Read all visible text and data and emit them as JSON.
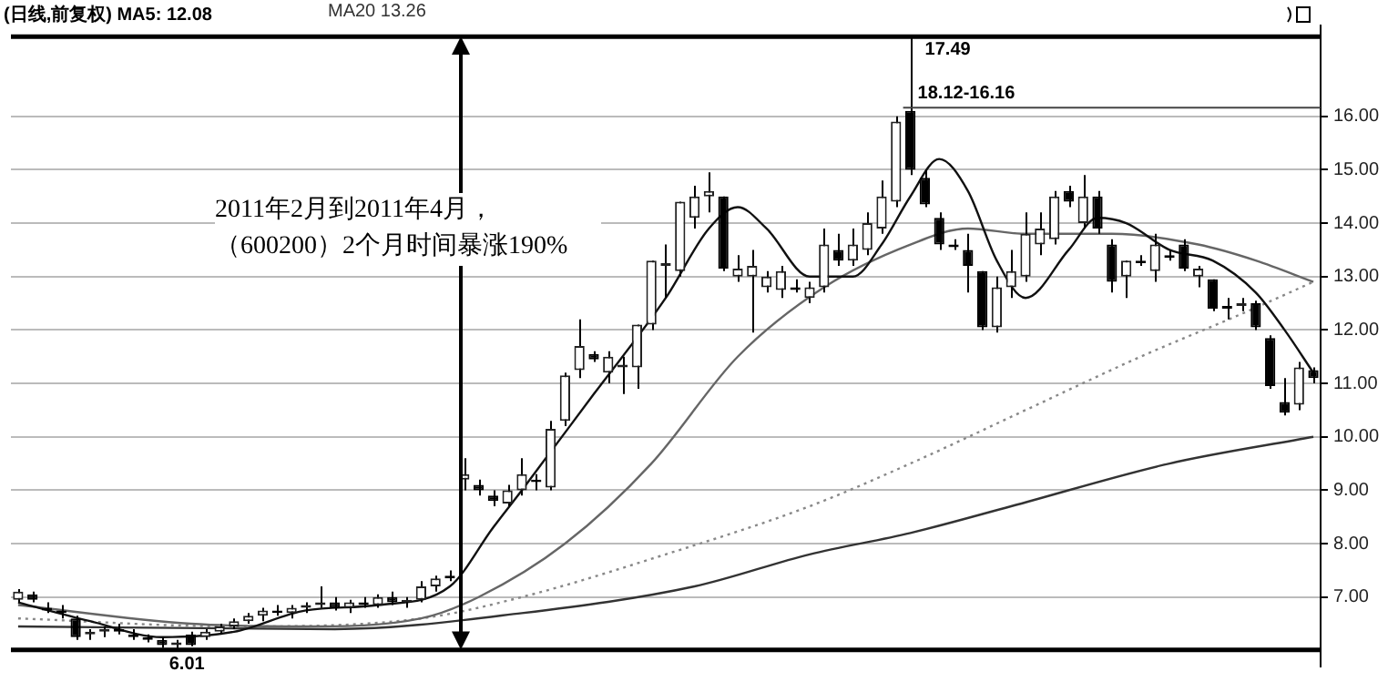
{
  "chart_data": {
    "type": "candlestick",
    "title": "(日线,前复权) MA5: 12.08",
    "subtitle": "MA20 13.26",
    "categories": [
      null,
      null,
      null,
      null,
      null,
      null,
      null,
      null,
      null,
      null,
      null,
      null,
      null,
      null,
      null,
      null,
      null,
      null,
      null,
      null,
      null,
      null,
      null,
      null,
      null,
      null,
      null,
      null,
      null,
      null,
      null,
      null,
      null,
      null,
      null,
      null,
      null,
      null,
      null,
      null,
      null,
      null,
      null,
      null,
      null,
      null,
      null,
      null,
      null,
      null,
      null,
      null,
      null,
      null,
      null,
      null,
      null,
      null,
      null,
      null,
      null,
      null,
      null,
      null,
      null,
      null,
      null,
      null,
      null,
      null,
      null,
      null,
      null,
      null,
      null,
      null,
      null,
      null,
      null,
      null,
      null,
      null,
      null,
      null,
      null,
      null,
      null,
      null,
      null,
      null,
      null
    ],
    "ohlc": [
      [
        6.95,
        7.15,
        6.9,
        7.1
      ],
      [
        7.05,
        7.1,
        6.9,
        6.95
      ],
      [
        6.8,
        6.9,
        6.7,
        6.75
      ],
      [
        6.75,
        6.85,
        6.6,
        6.7
      ],
      [
        6.6,
        6.65,
        6.2,
        6.25
      ],
      [
        6.3,
        6.4,
        6.2,
        6.35
      ],
      [
        6.35,
        6.45,
        6.25,
        6.4
      ],
      [
        6.4,
        6.5,
        6.3,
        6.35
      ],
      [
        6.3,
        6.4,
        6.2,
        6.25
      ],
      [
        6.25,
        6.3,
        6.15,
        6.2
      ],
      [
        6.2,
        6.25,
        6.05,
        6.1
      ],
      [
        6.1,
        6.2,
        6.01,
        6.15
      ],
      [
        6.3,
        6.35,
        6.08,
        6.1
      ],
      [
        6.25,
        6.4,
        6.2,
        6.35
      ],
      [
        6.35,
        6.5,
        6.3,
        6.45
      ],
      [
        6.45,
        6.6,
        6.4,
        6.55
      ],
      [
        6.55,
        6.7,
        6.5,
        6.65
      ],
      [
        6.65,
        6.8,
        6.55,
        6.75
      ],
      [
        6.75,
        6.85,
        6.65,
        6.7
      ],
      [
        6.7,
        6.85,
        6.6,
        6.8
      ],
      [
        6.8,
        6.9,
        6.7,
        6.85
      ],
      [
        6.85,
        7.2,
        6.8,
        6.9
      ],
      [
        6.9,
        7.0,
        6.75,
        6.8
      ],
      [
        6.8,
        6.95,
        6.7,
        6.9
      ],
      [
        6.9,
        7.0,
        6.8,
        6.85
      ],
      [
        6.85,
        7.05,
        6.8,
        7.0
      ],
      [
        7.0,
        7.1,
        6.85,
        6.9
      ],
      [
        6.9,
        7.0,
        6.8,
        6.95
      ],
      [
        6.95,
        7.3,
        6.9,
        7.2
      ],
      [
        7.2,
        7.4,
        7.1,
        7.35
      ],
      [
        7.4,
        7.5,
        7.3,
        7.35
      ],
      [
        9.2,
        9.6,
        9.0,
        9.3
      ],
      [
        9.1,
        9.2,
        8.9,
        9.0
      ],
      [
        8.9,
        9.0,
        8.7,
        8.8
      ],
      [
        8.75,
        9.1,
        8.7,
        9.0
      ],
      [
        9.0,
        9.6,
        8.9,
        9.3
      ],
      [
        9.2,
        9.3,
        9.0,
        9.15
      ],
      [
        9.05,
        10.3,
        9.0,
        10.15
      ],
      [
        10.3,
        11.2,
        10.2,
        11.15
      ],
      [
        11.25,
        12.2,
        11.1,
        11.7
      ],
      [
        11.55,
        11.6,
        11.4,
        11.45
      ],
      [
        11.2,
        11.6,
        11.0,
        11.5
      ],
      [
        11.3,
        11.5,
        10.8,
        11.35
      ],
      [
        11.3,
        12.1,
        10.9,
        12.1
      ],
      [
        12.1,
        13.3,
        12.0,
        13.3
      ],
      [
        13.2,
        13.6,
        12.6,
        13.25
      ],
      [
        13.1,
        14.4,
        13.0,
        14.4
      ],
      [
        14.1,
        14.7,
        13.9,
        14.5
      ],
      [
        14.5,
        14.95,
        14.2,
        14.6
      ],
      [
        14.5,
        14.5,
        13.1,
        13.15
      ],
      [
        13.0,
        13.4,
        12.9,
        13.15
      ],
      [
        13.0,
        13.5,
        11.95,
        13.2
      ],
      [
        12.8,
        13.1,
        12.7,
        13.0
      ],
      [
        12.75,
        13.2,
        12.6,
        13.1
      ],
      [
        12.8,
        12.95,
        12.7,
        12.75
      ],
      [
        12.6,
        12.9,
        12.5,
        12.8
      ],
      [
        12.8,
        13.9,
        12.7,
        13.6
      ],
      [
        13.5,
        13.8,
        13.2,
        13.3
      ],
      [
        13.3,
        13.9,
        13.2,
        13.6
      ],
      [
        13.5,
        14.2,
        13.4,
        14.0
      ],
      [
        13.9,
        14.8,
        13.8,
        14.5
      ],
      [
        14.4,
        16.0,
        14.3,
        15.9
      ],
      [
        16.1,
        17.49,
        14.9,
        15.0
      ],
      [
        14.85,
        15.0,
        14.3,
        14.35
      ],
      [
        14.1,
        14.2,
        13.5,
        13.6
      ],
      [
        13.6,
        13.7,
        13.5,
        13.55
      ],
      [
        13.5,
        13.8,
        12.7,
        13.2
      ],
      [
        13.1,
        13.1,
        12.0,
        12.05
      ],
      [
        12.05,
        13.0,
        11.95,
        12.8
      ],
      [
        12.8,
        13.5,
        12.6,
        13.1
      ],
      [
        13.0,
        14.2,
        12.9,
        13.8
      ],
      [
        13.6,
        14.2,
        13.4,
        13.9
      ],
      [
        13.7,
        14.6,
        13.6,
        14.5
      ],
      [
        14.6,
        14.7,
        14.3,
        14.4
      ],
      [
        14.0,
        14.9,
        13.9,
        14.5
      ],
      [
        14.5,
        14.6,
        13.8,
        13.9
      ],
      [
        13.6,
        13.7,
        12.7,
        12.9
      ],
      [
        13.0,
        13.3,
        12.6,
        13.3
      ],
      [
        13.3,
        13.4,
        13.2,
        13.25
      ],
      [
        13.1,
        13.8,
        12.9,
        13.6
      ],
      [
        13.4,
        13.5,
        13.3,
        13.35
      ],
      [
        13.6,
        13.7,
        13.1,
        13.15
      ],
      [
        13.0,
        13.2,
        12.8,
        13.15
      ],
      [
        12.95,
        12.95,
        12.35,
        12.4
      ],
      [
        12.45,
        12.6,
        12.2,
        12.4
      ],
      [
        12.45,
        12.6,
        12.35,
        12.5
      ],
      [
        12.5,
        12.55,
        12.0,
        12.05
      ],
      [
        11.85,
        11.9,
        10.9,
        10.95
      ],
      [
        10.65,
        11.1,
        10.4,
        10.45
      ],
      [
        10.6,
        11.4,
        10.5,
        11.3
      ],
      [
        11.25,
        11.3,
        11.0,
        11.1
      ]
    ],
    "series": [
      {
        "type": "line",
        "color": "#111111",
        "values": [
          6.9,
          null,
          null,
          null,
          null,
          6.55,
          null,
          null,
          null,
          null,
          6.25,
          null,
          null,
          null,
          null,
          6.35,
          null,
          null,
          null,
          null,
          6.75,
          null,
          null,
          null,
          null,
          6.85,
          null,
          null,
          null,
          null,
          7.2,
          null,
          null,
          8.3,
          null,
          9.0,
          null,
          null,
          null,
          null,
          10.8,
          null,
          null,
          null,
          null,
          12.6,
          null,
          null,
          13.9,
          null,
          14.3,
          null,
          13.9,
          null,
          null,
          13.0,
          null,
          null,
          13.0,
          null,
          13.6,
          null,
          14.5,
          null,
          15.2,
          null,
          14.6,
          null,
          13.3,
          null,
          12.6,
          null,
          null,
          13.5,
          null,
          14.1,
          null,
          14.0,
          null,
          null,
          13.5,
          null,
          null,
          13.3,
          null,
          null,
          12.7,
          null,
          12.0,
          null,
          11.2
        ]
      },
      {
        "type": "line",
        "color": "#666666",
        "values": [
          6.85,
          null,
          null,
          null,
          null,
          null,
          null,
          null,
          null,
          null,
          null,
          null,
          6.5,
          null,
          null,
          null,
          null,
          null,
          null,
          null,
          6.45,
          null,
          null,
          null,
          null,
          null,
          null,
          null,
          6.6,
          null,
          null,
          null,
          7.0,
          null,
          null,
          null,
          null,
          null,
          8.0,
          null,
          null,
          null,
          null,
          null,
          9.5,
          null,
          null,
          null,
          null,
          null,
          11.5,
          null,
          null,
          null,
          null,
          null,
          12.8,
          null,
          null,
          null,
          null,
          null,
          13.6,
          null,
          null,
          null,
          13.9,
          null,
          null,
          null,
          13.8,
          null,
          null,
          null,
          null,
          null,
          13.8,
          null,
          null,
          null,
          null,
          null,
          13.6,
          null,
          null,
          null,
          13.3,
          null,
          null,
          null,
          12.9
        ]
      },
      {
        "type": "line",
        "color": "#888888",
        "line_style": "dotted",
        "values": [
          6.6,
          null,
          null,
          null,
          null,
          null,
          null,
          null,
          null,
          null,
          null,
          null,
          null,
          null,
          null,
          6.45,
          null,
          null,
          null,
          null,
          null,
          null,
          null,
          null,
          null,
          null,
          null,
          null,
          6.6,
          null,
          null,
          null,
          null,
          null,
          null,
          7.0,
          null,
          null,
          null,
          null,
          null,
          null,
          null,
          null,
          null,
          7.8,
          null,
          null,
          null,
          null,
          null,
          null,
          null,
          null,
          null,
          8.7,
          null,
          null,
          null,
          null,
          null,
          null,
          9.5,
          null,
          null,
          null,
          null,
          null,
          null,
          null,
          10.5,
          null,
          null,
          null,
          null,
          null,
          null,
          null,
          11.5,
          null,
          null,
          null,
          null,
          null,
          null,
          12.3,
          null,
          null,
          null,
          null,
          12.9
        ]
      },
      {
        "type": "line",
        "color": "#333333",
        "values": [
          6.45,
          null,
          null,
          null,
          null,
          null,
          null,
          null,
          null,
          null,
          null,
          null,
          null,
          null,
          null,
          null,
          null,
          null,
          null,
          null,
          null,
          null,
          6.4,
          null,
          null,
          null,
          null,
          null,
          null,
          null,
          null,
          null,
          null,
          null,
          null,
          6.7,
          null,
          null,
          null,
          null,
          null,
          null,
          null,
          null,
          null,
          null,
          null,
          7.2,
          null,
          null,
          null,
          null,
          null,
          null,
          null,
          7.8,
          null,
          null,
          null,
          null,
          null,
          null,
          8.2,
          null,
          null,
          null,
          null,
          null,
          null,
          8.7,
          null,
          null,
          null,
          null,
          null,
          null,
          null,
          null,
          null,
          null,
          9.5,
          null,
          null,
          null,
          null,
          null,
          null,
          null,
          null,
          null,
          10.0
        ]
      }
    ],
    "ylim": [
      5.7,
      17.7
    ],
    "yticks": [
      {
        "value": 7,
        "label": "7.00"
      },
      {
        "value": 8,
        "label": "8.00"
      },
      {
        "value": 9,
        "label": "9.00"
      },
      {
        "value": 10,
        "label": "10.00"
      },
      {
        "value": 11,
        "label": "11.00"
      },
      {
        "value": 12,
        "label": "12.00"
      },
      {
        "value": 13,
        "label": "13.00"
      },
      {
        "value": 14,
        "label": "14.00"
      },
      {
        "value": 15,
        "label": "15.00"
      },
      {
        "value": 16,
        "label": "16.00"
      }
    ],
    "grid": "y",
    "tick_labels": "y",
    "legend": false,
    "ref_lines": [
      {
        "axis": "y",
        "value": 17.49,
        "color": "#000000"
      },
      {
        "axis": "y",
        "value": 6.01,
        "color": "#000000"
      },
      {
        "axis": "y",
        "value": 16.16,
        "color": "#444444"
      }
    ],
    "annotations": [
      {
        "text": "17.49",
        "y": 17.49
      },
      {
        "text": "18.12-16.16",
        "y": 16.16
      },
      {
        "text": "6.01",
        "y": 6.01
      },
      "2011年2月到2011年4月，（600200）2个月时间暴涨190%"
    ]
  }
}
